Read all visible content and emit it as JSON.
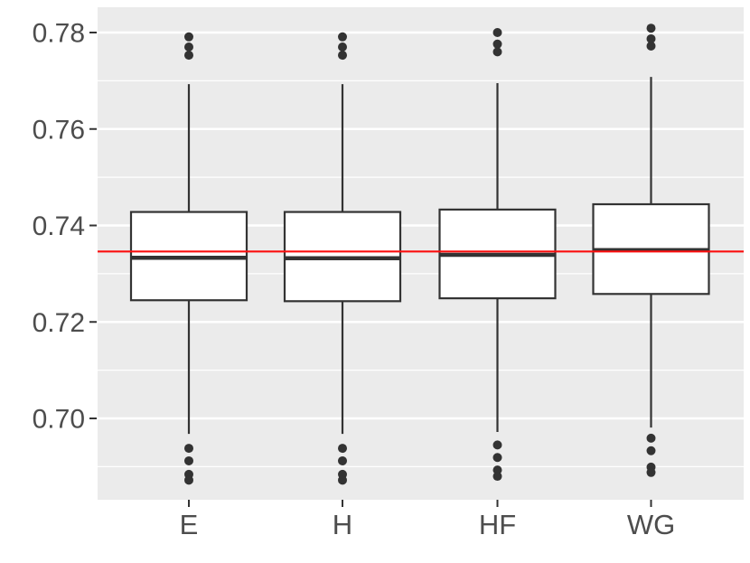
{
  "chart_data": {
    "type": "boxplot",
    "title": "",
    "xlabel": "",
    "ylabel": "",
    "categories": [
      "E",
      "H",
      "HF",
      "WG"
    ],
    "ylim": [
      0.6832,
      0.7852
    ],
    "y_major_ticks": [
      0.7,
      0.72,
      0.74,
      0.76,
      0.78
    ],
    "y_tick_labels": [
      "0.70",
      "0.72",
      "0.74",
      "0.76",
      "0.78"
    ],
    "y_minor_ticks": [
      0.69,
      0.71,
      0.73,
      0.75,
      0.77
    ],
    "grid": "on",
    "legend": "none",
    "reference_line": {
      "value": 0.7346,
      "color": "#fb0f0f"
    },
    "series": [
      {
        "name": "E",
        "whisker_low": 0.6968,
        "q1": 0.7245,
        "median": 0.7333,
        "q3": 0.7428,
        "whisker_high": 0.7693,
        "outliers_high": [
          0.7791,
          0.777,
          0.7753
        ],
        "outliers_low": [
          0.6938,
          0.6912,
          0.6884,
          0.6872
        ]
      },
      {
        "name": "H",
        "whisker_low": 0.6968,
        "q1": 0.7243,
        "median": 0.7332,
        "q3": 0.7428,
        "whisker_high": 0.7693,
        "outliers_high": [
          0.7791,
          0.777,
          0.7753
        ],
        "outliers_low": [
          0.6938,
          0.6912,
          0.6884,
          0.6872
        ]
      },
      {
        "name": "HF",
        "whisker_low": 0.6972,
        "q1": 0.7249,
        "median": 0.7339,
        "q3": 0.7433,
        "whisker_high": 0.7695,
        "outliers_high": [
          0.78,
          0.7776,
          0.776
        ],
        "outliers_low": [
          0.6945,
          0.6919,
          0.6893,
          0.688
        ]
      },
      {
        "name": "WG",
        "whisker_low": 0.6981,
        "q1": 0.7258,
        "median": 0.7349,
        "q3": 0.7444,
        "whisker_high": 0.7708,
        "outliers_high": [
          0.7809,
          0.7787,
          0.7772
        ],
        "outliers_low": [
          0.6959,
          0.6933,
          0.6899,
          0.6888
        ]
      }
    ],
    "style": {
      "panel_bg": "#ebebeb",
      "grid_color": "#ffffff",
      "box_fill": "#ffffff",
      "box_stroke": "#333333",
      "median_color": "#333333",
      "outlier_color": "#333333",
      "axis_text_color": "#4d4d4d",
      "tick_color": "#333333",
      "outer_bg": "#ffffff"
    }
  }
}
